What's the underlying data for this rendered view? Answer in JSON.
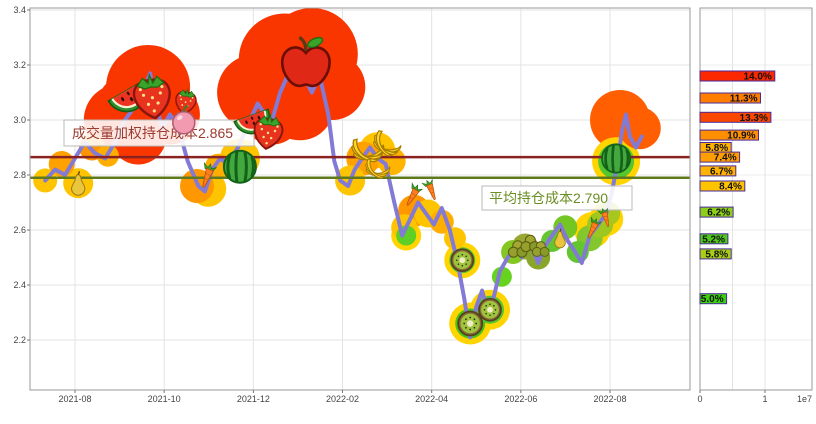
{
  "chart_data": {
    "type": "line",
    "main_chart": {
      "y_ticks": [
        "3.4",
        "3.2",
        "3.0",
        "2.8",
        "2.6",
        "2.4",
        "2.2"
      ],
      "y_tick_values": [
        3.4,
        3.2,
        3.0,
        2.8,
        2.6,
        2.4,
        2.2
      ],
      "x_ticks": [
        "2021-08",
        "2021-10",
        "2021-12",
        "2022-02",
        "2022-04",
        "2022-06",
        "2022-08"
      ],
      "ylim": [
        2.02,
        3.43
      ],
      "grid": "on",
      "price_line_color": "#837ad6",
      "vwap_line": {
        "label": "成交量加权持仓成本2.865",
        "value": 2.865,
        "line_color": "#8b2222",
        "text_color": "#9c3a2e"
      },
      "avg_line": {
        "label": "平均持仓成本2.790",
        "value": 2.79,
        "line_color": "#5f7a1e",
        "text_color": "#6b8e23"
      },
      "series_points": [
        [
          0.023,
          2.78
        ],
        [
          0.038,
          2.82
        ],
        [
          0.053,
          2.8
        ],
        [
          0.068,
          2.86
        ],
        [
          0.083,
          2.92
        ],
        [
          0.098,
          2.88
        ],
        [
          0.114,
          2.86
        ],
        [
          0.129,
          2.92
        ],
        [
          0.144,
          3.0
        ],
        [
          0.159,
          3.05
        ],
        [
          0.174,
          3.12
        ],
        [
          0.182,
          3.17
        ],
        [
          0.189,
          3.08
        ],
        [
          0.2,
          2.97
        ],
        [
          0.212,
          3.02
        ],
        [
          0.224,
          2.98
        ],
        [
          0.239,
          2.85
        ],
        [
          0.255,
          2.76
        ],
        [
          0.265,
          2.74
        ],
        [
          0.276,
          2.82
        ],
        [
          0.288,
          2.86
        ],
        [
          0.3,
          2.84
        ],
        [
          0.315,
          2.9
        ],
        [
          0.33,
          2.98
        ],
        [
          0.345,
          3.06
        ],
        [
          0.356,
          3.02
        ],
        [
          0.367,
          3.0
        ],
        [
          0.379,
          3.1
        ],
        [
          0.394,
          3.18
        ],
        [
          0.406,
          3.22
        ],
        [
          0.417,
          3.15
        ],
        [
          0.427,
          3.1
        ],
        [
          0.439,
          3.16
        ],
        [
          0.452,
          3.02
        ],
        [
          0.461,
          2.85
        ],
        [
          0.47,
          2.78
        ],
        [
          0.482,
          2.76
        ],
        [
          0.492,
          2.82
        ],
        [
          0.503,
          2.86
        ],
        [
          0.515,
          2.9
        ],
        [
          0.527,
          2.86
        ],
        [
          0.539,
          2.84
        ],
        [
          0.552,
          2.7
        ],
        [
          0.564,
          2.58
        ],
        [
          0.576,
          2.64
        ],
        [
          0.588,
          2.7
        ],
        [
          0.6,
          2.66
        ],
        [
          0.612,
          2.62
        ],
        [
          0.624,
          2.68
        ],
        [
          0.636,
          2.6
        ],
        [
          0.648,
          2.48
        ],
        [
          0.658,
          2.35
        ],
        [
          0.667,
          2.21
        ],
        [
          0.676,
          2.32
        ],
        [
          0.685,
          2.38
        ],
        [
          0.694,
          2.3
        ],
        [
          0.703,
          2.36
        ],
        [
          0.712,
          2.45
        ],
        [
          0.724,
          2.5
        ],
        [
          0.735,
          2.54
        ],
        [
          0.745,
          2.5
        ],
        [
          0.758,
          2.55
        ],
        [
          0.77,
          2.48
        ],
        [
          0.78,
          2.54
        ],
        [
          0.791,
          2.58
        ],
        [
          0.803,
          2.62
        ],
        [
          0.815,
          2.56
        ],
        [
          0.826,
          2.52
        ],
        [
          0.836,
          2.48
        ],
        [
          0.848,
          2.58
        ],
        [
          0.861,
          2.62
        ],
        [
          0.873,
          2.66
        ],
        [
          0.882,
          2.74
        ],
        [
          0.891,
          2.86
        ],
        [
          0.897,
          2.96
        ],
        [
          0.903,
          3.02
        ],
        [
          0.909,
          2.94
        ],
        [
          0.918,
          2.9
        ],
        [
          0.927,
          2.94
        ]
      ],
      "bubbles": [
        [
          0.136,
          3.0,
          36,
          "#f93600"
        ],
        [
          0.15,
          3.05,
          32,
          "#f93600"
        ],
        [
          0.164,
          2.94,
          28,
          "#f93600"
        ],
        [
          0.179,
          3.12,
          42,
          "#f93600"
        ],
        [
          0.212,
          3.02,
          30,
          "#f93600"
        ],
        [
          0.341,
          3.1,
          38,
          "#f93600"
        ],
        [
          0.367,
          3.02,
          30,
          "#f93600"
        ],
        [
          0.386,
          3.22,
          46,
          "#f93600"
        ],
        [
          0.409,
          3.05,
          34,
          "#f93600"
        ],
        [
          0.427,
          3.24,
          46,
          "#f93600"
        ],
        [
          0.458,
          3.12,
          33,
          "#f93600"
        ],
        [
          0.894,
          3.0,
          30,
          "#ff5f00"
        ],
        [
          0.924,
          2.97,
          21,
          "#ff5f00"
        ],
        [
          0.023,
          2.78,
          12,
          "#ffc400"
        ],
        [
          0.048,
          2.84,
          13,
          "#ffa200"
        ],
        [
          0.073,
          2.77,
          15,
          "#ffc400"
        ],
        [
          0.094,
          2.9,
          13,
          "#ff9300"
        ],
        [
          0.118,
          2.87,
          11,
          "#ffae00"
        ],
        [
          0.253,
          2.76,
          17,
          "#ff9800"
        ],
        [
          0.27,
          2.75,
          18,
          "#ffc400"
        ],
        [
          0.285,
          2.83,
          13,
          "#ffae00"
        ],
        [
          0.318,
          2.86,
          20,
          "#ffc400"
        ],
        [
          0.485,
          2.78,
          15,
          "#ffc400"
        ],
        [
          0.505,
          2.86,
          17,
          "#ffa200"
        ],
        [
          0.526,
          2.89,
          18,
          "#ffc400"
        ],
        [
          0.548,
          2.85,
          14,
          "#ffb400"
        ],
        [
          0.567,
          2.61,
          13,
          "#ffc400"
        ],
        [
          0.582,
          2.67,
          16,
          "#ff9800"
        ],
        [
          0.603,
          2.66,
          14,
          "#ffc400"
        ],
        [
          0.624,
          2.63,
          12,
          "#ffae00"
        ],
        [
          0.644,
          2.57,
          11,
          "#ffc400"
        ],
        [
          0.57,
          2.58,
          15,
          "#ffd400"
        ],
        [
          0.655,
          2.49,
          18,
          "#ffd400"
        ],
        [
          0.667,
          2.26,
          21,
          "#ffd400"
        ],
        [
          0.697,
          2.31,
          20,
          "#ffd400"
        ],
        [
          0.852,
          2.6,
          18,
          "#ffd400"
        ],
        [
          0.873,
          2.64,
          17,
          "#ffd400"
        ],
        [
          0.888,
          2.85,
          24,
          "#ffd400"
        ],
        [
          0.57,
          2.58,
          10,
          "#5ecf24"
        ],
        [
          0.655,
          2.49,
          13,
          "#54c62e"
        ],
        [
          0.667,
          2.26,
          15,
          "#46c518"
        ],
        [
          0.697,
          2.31,
          14,
          "#54c62e"
        ],
        [
          0.715,
          2.43,
          10,
          "#66d31f"
        ],
        [
          0.732,
          2.52,
          12,
          "#84c723"
        ],
        [
          0.75,
          2.54,
          13,
          "#98a832"
        ],
        [
          0.77,
          2.5,
          12,
          "#8aa62a"
        ],
        [
          0.791,
          2.56,
          11,
          "#63c62e"
        ],
        [
          0.811,
          2.61,
          12,
          "#74c722"
        ],
        [
          0.83,
          2.52,
          11,
          "#63c62e"
        ],
        [
          0.848,
          2.57,
          13,
          "#84c72c"
        ],
        [
          0.864,
          2.62,
          13,
          "#9cc721"
        ],
        [
          0.876,
          2.66,
          12,
          "#a8c71e"
        ],
        [
          0.888,
          2.85,
          18,
          "#54c62e"
        ]
      ],
      "fruit_markers": [
        {
          "t": "watermelon-slice",
          "f": 0.148,
          "p": 3.1,
          "s": 44,
          "r": -30
        },
        {
          "t": "strawberry",
          "f": 0.185,
          "p": 3.09,
          "s": 46,
          "r": -8
        },
        {
          "t": "strawberry",
          "f": 0.236,
          "p": 3.07,
          "s": 26,
          "r": 10
        },
        {
          "t": "peach",
          "f": 0.233,
          "p": 2.99,
          "s": 22,
          "r": 0
        },
        {
          "t": "watermelon-slice",
          "f": 0.336,
          "p": 3.01,
          "s": 38,
          "r": -20
        },
        {
          "t": "apple",
          "f": 0.418,
          "p": 3.21,
          "s": 50,
          "r": 0
        },
        {
          "t": "strawberry",
          "f": 0.361,
          "p": 2.96,
          "s": 36,
          "r": 8
        },
        {
          "t": "pear",
          "f": 0.073,
          "p": 2.77,
          "s": 20,
          "r": 0
        },
        {
          "t": "carrot",
          "f": 0.268,
          "p": 2.79,
          "s": 26,
          "r": 20
        },
        {
          "t": "watermelon",
          "f": 0.318,
          "p": 2.83,
          "s": 34,
          "r": 0
        },
        {
          "t": "banana",
          "f": 0.512,
          "p": 2.9,
          "s": 34,
          "r": -10
        },
        {
          "t": "banana",
          "f": 0.542,
          "p": 2.92,
          "s": 30,
          "r": 15
        },
        {
          "t": "banana",
          "f": 0.527,
          "p": 2.83,
          "s": 26,
          "r": 0
        },
        {
          "t": "carrot",
          "f": 0.579,
          "p": 2.72,
          "s": 24,
          "r": 30
        },
        {
          "t": "carrot",
          "f": 0.609,
          "p": 2.74,
          "s": 22,
          "r": -20
        },
        {
          "t": "kiwi",
          "f": 0.655,
          "p": 2.49,
          "s": 22,
          "r": 0
        },
        {
          "t": "kiwi",
          "f": 0.667,
          "p": 2.26,
          "s": 24,
          "r": 0
        },
        {
          "t": "kiwi",
          "f": 0.697,
          "p": 2.31,
          "s": 22,
          "r": 0
        },
        {
          "t": "olive",
          "f": 0.739,
          "p": 2.53,
          "s": 20,
          "r": 0
        },
        {
          "t": "olive",
          "f": 0.758,
          "p": 2.55,
          "s": 20,
          "r": 0
        },
        {
          "t": "olive",
          "f": 0.774,
          "p": 2.53,
          "s": 18,
          "r": 0
        },
        {
          "t": "pear",
          "f": 0.803,
          "p": 2.57,
          "s": 16,
          "r": 0
        },
        {
          "t": "carrot",
          "f": 0.852,
          "p": 2.6,
          "s": 22,
          "r": 25
        },
        {
          "t": "carrot",
          "f": 0.873,
          "p": 2.64,
          "s": 20,
          "r": -15
        },
        {
          "t": "watermelon",
          "f": 0.888,
          "p": 2.86,
          "s": 30,
          "r": 0
        }
      ]
    },
    "volume_histogram": {
      "x_ticks": [
        "0",
        "1"
      ],
      "x_tick_values": [
        0,
        1
      ],
      "grid_values": [
        0,
        0.5,
        1
      ],
      "scale_label": "1e7",
      "bar_outline_color": "#4a2a9a",
      "bars": [
        {
          "label": "14.0%",
          "price": 3.16,
          "value": 1.15,
          "color": "#fb2800"
        },
        {
          "label": "11.3%",
          "price": 3.08,
          "value": 0.93,
          "color": "#ff7d00"
        },
        {
          "label": "13.3%",
          "price": 3.01,
          "value": 1.09,
          "color": "#fb4800"
        },
        {
          "label": "10.9%",
          "price": 2.945,
          "value": 0.9,
          "color": "#ff8f00"
        },
        {
          "label": "5.8%",
          "price": 2.9,
          "value": 0.48,
          "color": "#ffb300"
        },
        {
          "label": "7.4%",
          "price": 2.865,
          "value": 0.61,
          "color": "#ff9e00"
        },
        {
          "label": "6.7%",
          "price": 2.815,
          "value": 0.55,
          "color": "#ffb300"
        },
        {
          "label": "8.4%",
          "price": 2.76,
          "value": 0.69,
          "color": "#ffc400"
        },
        {
          "label": "6.2%",
          "price": 2.665,
          "value": 0.51,
          "color": "#8ecf1c"
        },
        {
          "label": "5.2%",
          "price": 2.568,
          "value": 0.43,
          "color": "#4fc81c"
        },
        {
          "label": "5.8%",
          "price": 2.513,
          "value": 0.48,
          "color": "#a8cf16"
        },
        {
          "label": "5.0%",
          "price": 2.35,
          "value": 0.41,
          "color": "#3bcf10"
        }
      ]
    }
  }
}
